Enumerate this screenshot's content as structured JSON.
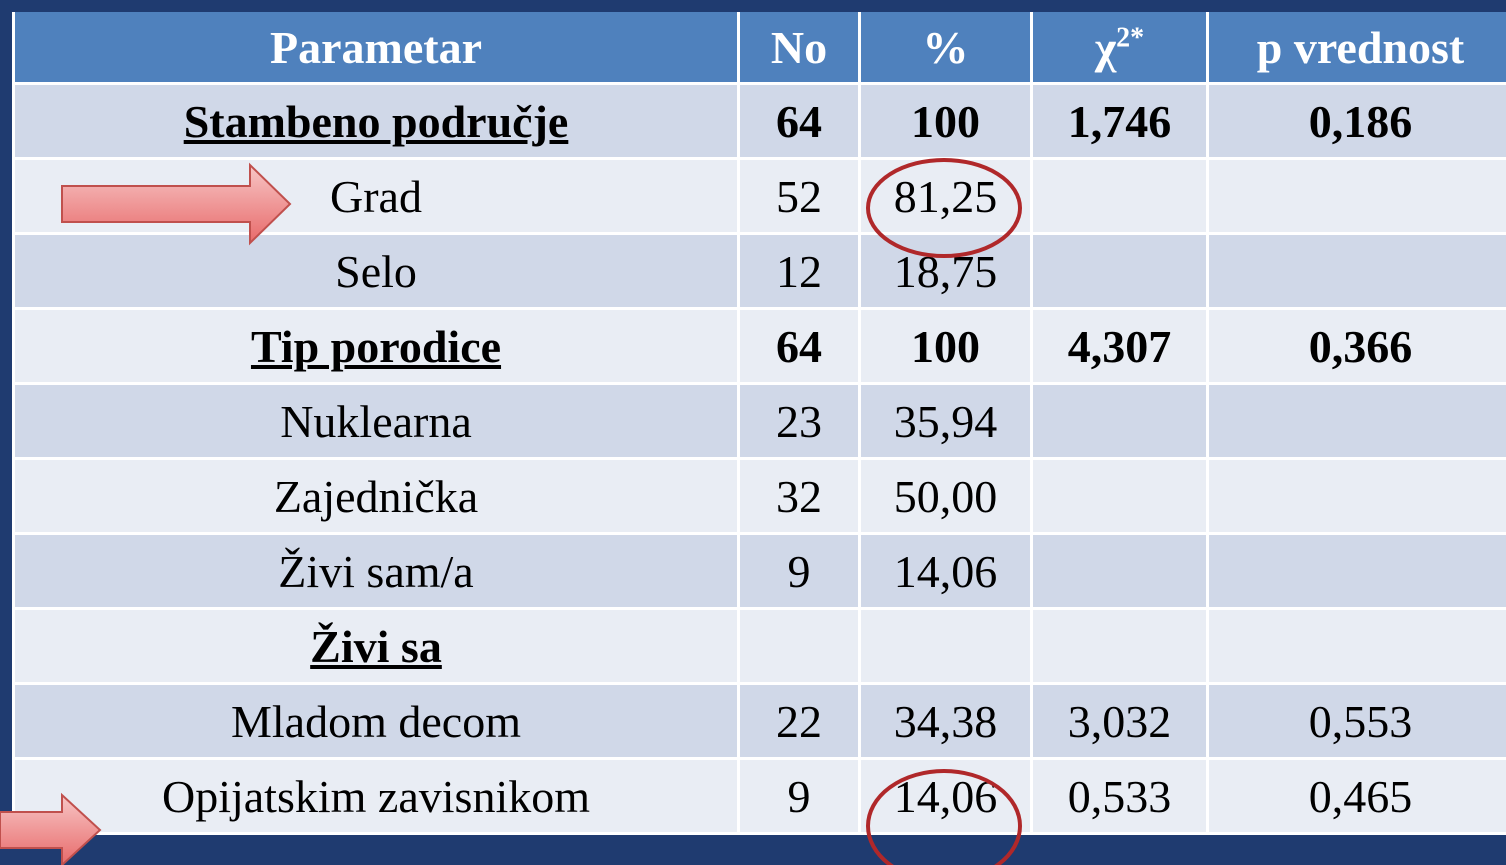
{
  "table": {
    "header": [
      "Parametar",
      "No",
      "%",
      {
        "base": "χ",
        "sup": "2*"
      },
      "p vrednost"
    ],
    "rows": [
      {
        "label": "Stambeno područje",
        "heading": true,
        "no": "64",
        "pct": "100",
        "chi2": "1,746",
        "p": "0,186"
      },
      {
        "label": "Grad",
        "no": "52",
        "pct": "81,25"
      },
      {
        "label": "Selo",
        "no": "12",
        "pct": "18,75"
      },
      {
        "label": "Tip porodice",
        "heading": true,
        "no": "64",
        "pct": "100",
        "chi2": "4,307",
        "p": "0,366"
      },
      {
        "label": "Nuklearna",
        "no": "23",
        "pct": "35,94"
      },
      {
        "label": "Zajednička",
        "no": "32",
        "pct": "50,00"
      },
      {
        "label": "Živi sam/a",
        "no": "9",
        "pct": "14,06"
      },
      {
        "label": "Živi sa",
        "heading": true
      },
      {
        "label": "Mladom decom",
        "no": "22",
        "pct": "34,38",
        "chi2": "3,032",
        "p": "0,553"
      },
      {
        "label": "Opijatskim zavisnikom",
        "no": "9",
        "pct": "14,06",
        "chi2": "0,533",
        "p": "0,465"
      }
    ]
  }
}
